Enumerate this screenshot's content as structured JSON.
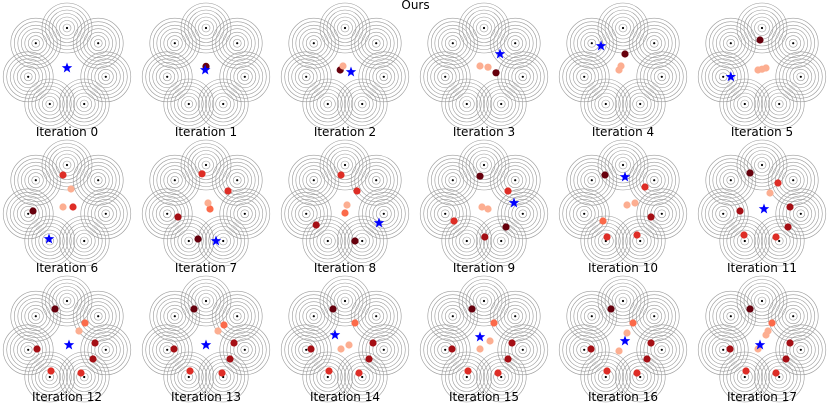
{
  "chart_data": {
    "type": "scatter",
    "title": "Ours",
    "contour_color": "#9a9a9a",
    "query_color": "#0000ff",
    "sample_colormap": [
      "#fee5d9",
      "#fcae91",
      "#fb6a4a",
      "#de2d26",
      "#a50f15",
      "#67000d"
    ],
    "centers": [
      [
        0.0,
        1.0
      ],
      [
        0.78,
        0.62
      ],
      [
        0.97,
        -0.22
      ],
      [
        0.43,
        -0.9
      ],
      [
        -0.43,
        -0.9
      ],
      [
        -0.97,
        -0.22
      ],
      [
        -0.78,
        0.62
      ]
    ],
    "panels": [
      {
        "title": "Iteration 0",
        "query": [
          0.0,
          0.0
        ],
        "samples": []
      },
      {
        "title": "Iteration 1",
        "query": [
          -0.02,
          -0.05
        ],
        "samples": [
          [
            0.0,
            0.04,
            0.95
          ]
        ]
      },
      {
        "title": "Iteration 2",
        "query": [
          0.15,
          -0.1
        ],
        "samples": [
          [
            -0.12,
            -0.05,
            0.95
          ],
          [
            -0.05,
            0.05,
            0.15
          ]
        ]
      },
      {
        "title": "Iteration 3",
        "query": [
          0.4,
          0.35
        ],
        "samples": [
          [
            0.3,
            -0.12,
            0.95
          ],
          [
            -0.1,
            0.05,
            0.2
          ],
          [
            0.1,
            0.02,
            0.1
          ]
        ]
      },
      {
        "title": "Iteration 4",
        "query": [
          -0.55,
          0.55
        ],
        "samples": [
          [
            0.05,
            0.35,
            0.95
          ],
          [
            -0.1,
            -0.05,
            0.2
          ],
          [
            -0.05,
            0.05,
            0.1
          ]
        ]
      },
      {
        "title": "Iteration 5",
        "query": [
          -0.78,
          -0.22
        ],
        "samples": [
          [
            -0.05,
            0.7,
            0.95
          ],
          [
            -0.1,
            -0.05,
            0.25
          ],
          [
            0.0,
            -0.03,
            0.15
          ],
          [
            0.1,
            0.0,
            0.1
          ]
        ]
      },
      {
        "title": "Iteration 6",
        "query": [
          -0.45,
          -0.85
        ],
        "samples": [
          [
            -0.85,
            -0.15,
            0.95
          ],
          [
            -0.1,
            0.75,
            0.6
          ],
          [
            0.15,
            -0.05,
            0.5
          ],
          [
            0.1,
            0.4,
            0.1
          ],
          [
            -0.1,
            -0.05,
            0.1
          ]
        ]
      },
      {
        "title": "Iteration 7",
        "query": [
          0.25,
          -0.9
        ],
        "samples": [
          [
            -0.2,
            -0.85,
            0.95
          ],
          [
            -0.7,
            -0.3,
            0.7
          ],
          [
            -0.1,
            0.78,
            0.6
          ],
          [
            0.55,
            0.35,
            0.5
          ],
          [
            0.1,
            -0.1,
            0.35
          ],
          [
            0.05,
            0.05,
            0.1
          ]
        ]
      },
      {
        "title": "Iteration 8",
        "query": [
          0.85,
          -0.45
        ],
        "samples": [
          [
            0.25,
            -0.9,
            0.95
          ],
          [
            -0.72,
            -0.5,
            0.8
          ],
          [
            -0.1,
            0.75,
            0.65
          ],
          [
            0.3,
            0.35,
            0.6
          ],
          [
            0.0,
            -0.2,
            0.35
          ],
          [
            0.05,
            0.0,
            0.1
          ]
        ]
      },
      {
        "title": "Iteration 9",
        "query": [
          0.75,
          0.05
        ],
        "samples": [
          [
            -0.1,
            0.72,
            0.95
          ],
          [
            0.55,
            -0.55,
            0.9
          ],
          [
            0.02,
            -0.8,
            0.8
          ],
          [
            -0.75,
            -0.4,
            0.65
          ],
          [
            0.6,
            0.35,
            0.55
          ],
          [
            0.1,
            -0.1,
            0.2
          ],
          [
            -0.05,
            -0.05,
            0.1
          ]
        ]
      },
      {
        "title": "Iteration 10",
        "query": [
          0.05,
          0.7
        ],
        "samples": [
          [
            -0.45,
            0.75,
            0.95
          ],
          [
            0.7,
            -0.3,
            0.75
          ],
          [
            0.35,
            -0.75,
            0.65
          ],
          [
            -0.4,
            -0.8,
            0.65
          ],
          [
            0.55,
            0.45,
            0.55
          ],
          [
            -0.5,
            -0.4,
            0.35
          ],
          [
            0.3,
            0.05,
            0.15
          ],
          [
            0.1,
            0.0,
            0.1
          ]
        ]
      },
      {
        "title": "Iteration 11",
        "query": [
          0.05,
          -0.1
        ],
        "samples": [
          [
            -0.3,
            0.8,
            0.95
          ],
          [
            -0.55,
            -0.15,
            0.8
          ],
          [
            0.7,
            -0.05,
            0.8
          ],
          [
            0.65,
            -0.55,
            0.7
          ],
          [
            0.35,
            -0.8,
            0.65
          ],
          [
            -0.45,
            -0.75,
            0.6
          ],
          [
            0.4,
            0.55,
            0.5
          ],
          [
            0.2,
            0.3,
            0.1
          ]
        ]
      },
      {
        "title": "Iteration 12",
        "query": [
          0.05,
          -0.1
        ],
        "samples": [
          [
            -0.3,
            0.8,
            0.95
          ],
          [
            -0.75,
            -0.2,
            0.8
          ],
          [
            0.7,
            -0.05,
            0.8
          ],
          [
            0.65,
            -0.45,
            0.7
          ],
          [
            0.35,
            -0.8,
            0.65
          ],
          [
            -0.4,
            -0.75,
            0.6
          ],
          [
            0.45,
            0.45,
            0.45
          ],
          [
            0.3,
            0.25,
            0.1
          ]
        ]
      },
      {
        "title": "Iteration 13",
        "query": [
          0.0,
          -0.1
        ],
        "samples": [
          [
            -0.3,
            0.8,
            0.95
          ],
          [
            -0.8,
            -0.2,
            0.8
          ],
          [
            0.7,
            -0.05,
            0.8
          ],
          [
            0.6,
            -0.45,
            0.7
          ],
          [
            0.4,
            -0.8,
            0.65
          ],
          [
            -0.4,
            -0.75,
            0.6
          ],
          [
            0.45,
            0.4,
            0.45
          ],
          [
            0.3,
            0.25,
            0.1
          ]
        ]
      },
      {
        "title": "Iteration 14",
        "query": [
          -0.25,
          0.15
        ],
        "samples": [
          [
            -0.3,
            0.8,
            0.95
          ],
          [
            -0.85,
            -0.2,
            0.8
          ],
          [
            0.7,
            -0.05,
            0.8
          ],
          [
            0.6,
            -0.45,
            0.7
          ],
          [
            0.35,
            -0.8,
            0.65
          ],
          [
            -0.4,
            -0.75,
            0.6
          ],
          [
            0.25,
            0.45,
            0.35
          ],
          [
            0.1,
            -0.1,
            0.1
          ],
          [
            -0.1,
            -0.2,
            0.1
          ]
        ]
      },
      {
        "title": "Iteration 15",
        "query": [
          -0.1,
          0.1
        ],
        "samples": [
          [
            -0.3,
            0.8,
            0.95
          ],
          [
            -0.8,
            -0.2,
            0.8
          ],
          [
            0.7,
            -0.05,
            0.8
          ],
          [
            0.6,
            -0.45,
            0.7
          ],
          [
            0.35,
            -0.8,
            0.65
          ],
          [
            -0.4,
            -0.75,
            0.6
          ],
          [
            0.25,
            0.45,
            0.35
          ],
          [
            0.15,
            0.0,
            0.1
          ],
          [
            -0.1,
            -0.2,
            0.1
          ]
        ]
      },
      {
        "title": "Iteration 16",
        "query": [
          0.05,
          0.0
        ],
        "samples": [
          [
            -0.3,
            0.8,
            0.95
          ],
          [
            -0.8,
            -0.2,
            0.8
          ],
          [
            0.7,
            -0.05,
            0.8
          ],
          [
            0.6,
            -0.45,
            0.7
          ],
          [
            0.35,
            -0.8,
            0.65
          ],
          [
            -0.4,
            -0.75,
            0.6
          ],
          [
            0.25,
            0.45,
            0.35
          ],
          [
            0.1,
            0.2,
            0.1
          ],
          [
            -0.1,
            -0.25,
            0.1
          ]
        ]
      },
      {
        "title": "Iteration 17",
        "query": [
          -0.05,
          -0.1
        ],
        "samples": [
          [
            -0.3,
            0.8,
            0.95
          ],
          [
            -0.8,
            -0.2,
            0.8
          ],
          [
            0.7,
            -0.05,
            0.8
          ],
          [
            0.6,
            -0.45,
            0.7
          ],
          [
            0.35,
            -0.8,
            0.65
          ],
          [
            -0.4,
            -0.75,
            0.6
          ],
          [
            0.25,
            0.45,
            0.35
          ],
          [
            0.15,
            0.25,
            0.1
          ],
          [
            0.1,
            0.15,
            0.1
          ],
          [
            -0.1,
            -0.2,
            0.1
          ]
        ]
      }
    ]
  }
}
